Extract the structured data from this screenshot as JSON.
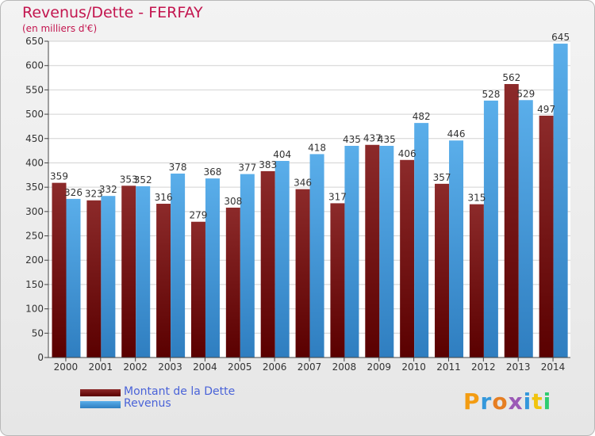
{
  "title": "Revenus/Dette - FERFAY",
  "subtitle": "(en milliers d'€)",
  "logo": {
    "text": "Proxiti",
    "letter_colors": [
      "#f39c12",
      "#3498db",
      "#e67e22",
      "#9b59b6",
      "#3498db",
      "#f1c40f",
      "#2ecc71"
    ]
  },
  "chart_data": {
    "type": "bar",
    "categories": [
      "2000",
      "2001",
      "2002",
      "2003",
      "2004",
      "2005",
      "2006",
      "2007",
      "2008",
      "2009",
      "2010",
      "2011",
      "2012",
      "2013",
      "2014"
    ],
    "series": [
      {
        "name": "Montant de la Dette",
        "values": [
          359,
          323,
          353,
          316,
          279,
          308,
          383,
          346,
          317,
          437,
          406,
          357,
          315,
          562,
          497
        ],
        "color_top": "#8c2a2a",
        "color_bottom": "#5a0000"
      },
      {
        "name": "Revenus",
        "values": [
          326,
          332,
          352,
          378,
          368,
          377,
          404,
          418,
          435,
          435,
          482,
          446,
          528,
          529,
          645
        ],
        "color_top": "#5aaeea",
        "color_bottom": "#2f7ec0"
      }
    ],
    "ylim": [
      0,
      650
    ],
    "yticks": [
      0,
      50,
      100,
      150,
      200,
      250,
      300,
      350,
      400,
      450,
      500,
      550,
      600,
      650
    ],
    "grid": true,
    "legend": "bottom-left"
  }
}
